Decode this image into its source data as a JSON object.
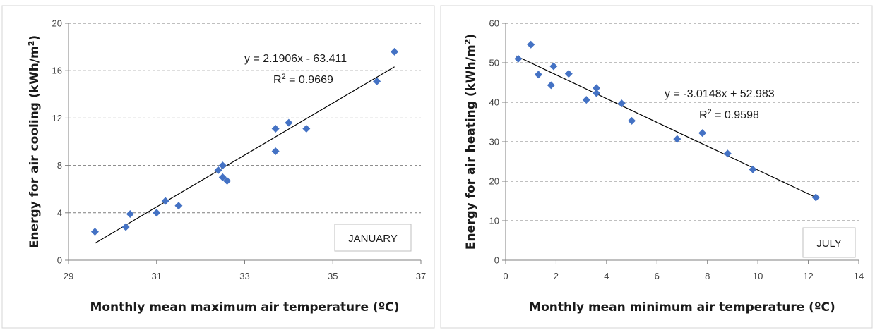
{
  "chart_data": [
    {
      "type": "scatter",
      "label": "JANUARY",
      "xlabel": "Monthly mean maximum air temperature (ºC)",
      "ylabel": "Energy for air cooling (kWh/m²)",
      "ylabel_parts": [
        "Energy for air cooling (kWh/m",
        "2",
        ")"
      ],
      "xlim": [
        29,
        37
      ],
      "ylim": [
        0,
        20
      ],
      "xticks": [
        29,
        31,
        33,
        35,
        37
      ],
      "yticks": [
        0,
        4,
        8,
        12,
        16,
        20
      ],
      "grid": "horizontal dashed",
      "marker_color": "#4472C4",
      "points": [
        {
          "x": 29.6,
          "y": 2.4
        },
        {
          "x": 30.3,
          "y": 2.8
        },
        {
          "x": 30.4,
          "y": 3.9
        },
        {
          "x": 31.0,
          "y": 4.0
        },
        {
          "x": 31.2,
          "y": 5.0
        },
        {
          "x": 31.5,
          "y": 4.6
        },
        {
          "x": 32.4,
          "y": 7.6
        },
        {
          "x": 32.5,
          "y": 8.0
        },
        {
          "x": 32.5,
          "y": 7.0
        },
        {
          "x": 32.6,
          "y": 6.7
        },
        {
          "x": 33.7,
          "y": 11.1
        },
        {
          "x": 33.7,
          "y": 9.2
        },
        {
          "x": 34.0,
          "y": 11.6
        },
        {
          "x": 34.4,
          "y": 11.1
        },
        {
          "x": 36.0,
          "y": 15.1
        },
        {
          "x": 36.4,
          "y": 17.6
        }
      ],
      "trendline": {
        "slope": 2.1906,
        "intercept": -63.411,
        "x_range": [
          29.6,
          36.4
        ]
      },
      "equation_parts": [
        "y = 2.1906x - 63.411"
      ],
      "r2_parts": [
        "R",
        "2",
        " = 0.9669"
      ]
    },
    {
      "type": "scatter",
      "label": "JULY",
      "xlabel": "Monthly mean minimum air temperature (ºC)",
      "ylabel": "Energy for air heating (kWh/m²)",
      "ylabel_parts": [
        "Energy for air heating (kWh/m",
        "2",
        ")"
      ],
      "xlim": [
        0,
        14
      ],
      "ylim": [
        0,
        60
      ],
      "xticks": [
        0,
        2,
        4,
        6,
        8,
        10,
        12,
        14
      ],
      "yticks": [
        0,
        10,
        20,
        30,
        40,
        50,
        60
      ],
      "grid": "horizontal dashed",
      "marker_color": "#4472C4",
      "points": [
        {
          "x": 0.5,
          "y": 51.0
        },
        {
          "x": 1.0,
          "y": 54.6
        },
        {
          "x": 1.3,
          "y": 47.0
        },
        {
          "x": 1.8,
          "y": 44.3
        },
        {
          "x": 1.9,
          "y": 49.1
        },
        {
          "x": 2.5,
          "y": 47.2
        },
        {
          "x": 3.2,
          "y": 40.6
        },
        {
          "x": 3.6,
          "y": 43.6
        },
        {
          "x": 3.6,
          "y": 42.3
        },
        {
          "x": 4.6,
          "y": 39.7
        },
        {
          "x": 5.0,
          "y": 35.3
        },
        {
          "x": 6.8,
          "y": 30.7
        },
        {
          "x": 7.8,
          "y": 32.2
        },
        {
          "x": 8.8,
          "y": 27.0
        },
        {
          "x": 9.8,
          "y": 23.0
        },
        {
          "x": 12.3,
          "y": 15.9
        }
      ],
      "trendline": {
        "slope": -3.0148,
        "intercept": 52.983,
        "x_range": [
          0.4,
          12.3
        ]
      },
      "equation_parts": [
        "y = -3.0148x + 52.983"
      ],
      "r2_parts": [
        "R",
        "2",
        " = 0.9598"
      ]
    }
  ]
}
